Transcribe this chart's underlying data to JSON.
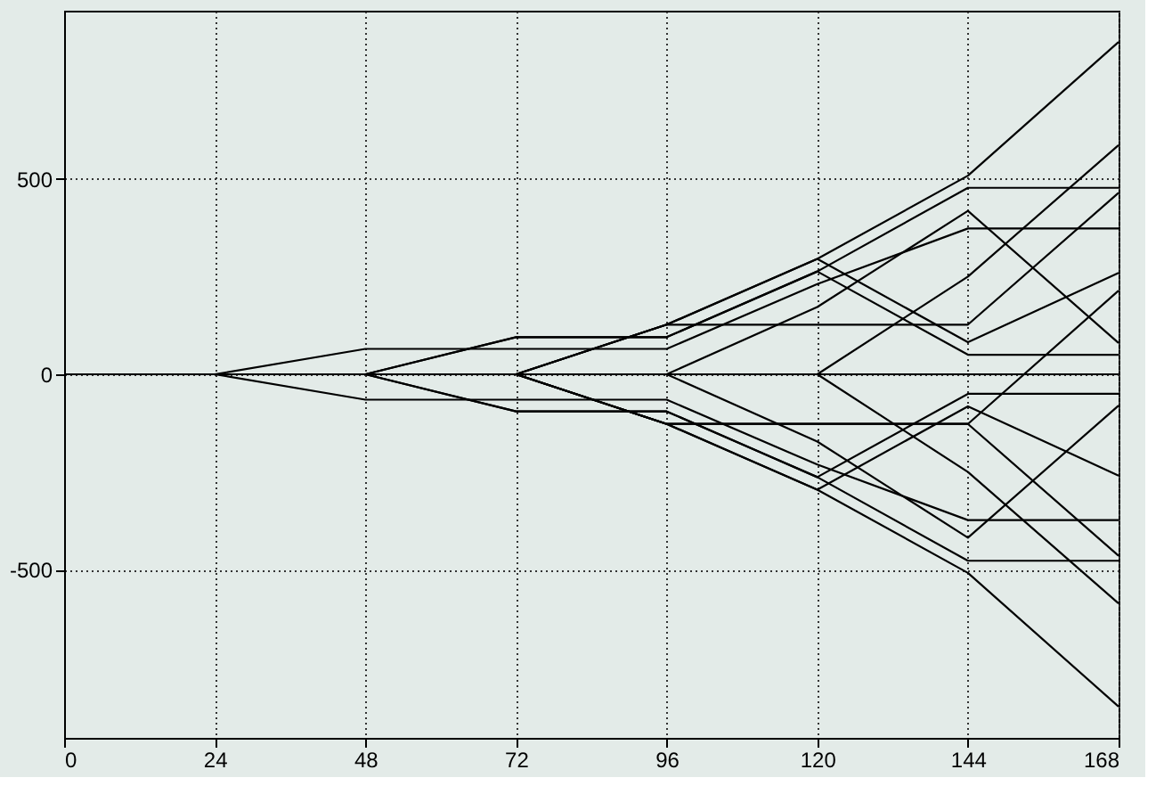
{
  "chart_data": {
    "type": "line",
    "x": [
      0,
      24,
      48,
      72,
      96,
      120,
      144,
      168
    ],
    "series": [
      {
        "color": "#000000",
        "values": [
          0,
          0,
          0,
          0,
          0,
          0,
          0,
          0
        ]
      },
      {
        "color": "#000000",
        "values": [
          0,
          0,
          65,
          65,
          65,
          231,
          373,
          373
        ]
      },
      {
        "color": "#000000",
        "values": [
          0,
          0,
          0,
          95,
          95,
          263,
          477,
          477
        ]
      },
      {
        "color": "#000000",
        "values": [
          0,
          0,
          0,
          0,
          127,
          295,
          508,
          850
        ]
      },
      {
        "color": "#000000",
        "values": [
          0,
          0,
          0,
          0,
          127,
          127,
          127,
          464
        ]
      },
      {
        "color": "#000000",
        "values": [
          0,
          0,
          0,
          0,
          0,
          172,
          418,
          80
        ]
      },
      {
        "color": "#000000",
        "values": [
          0,
          0,
          0,
          0,
          0,
          0,
          250,
          586
        ]
      },
      {
        "color": "#000000",
        "values": [
          0,
          0,
          0,
          0,
          127,
          295,
          82,
          259
        ]
      },
      {
        "color": "#000000",
        "values": [
          0,
          0,
          0,
          95,
          95,
          263,
          50,
          50
        ]
      },
      {
        "color": "#000000",
        "values": [
          0,
          0,
          -65,
          -65,
          -65,
          -231,
          -373,
          -373
        ]
      },
      {
        "color": "#000000",
        "values": [
          0,
          0,
          0,
          -95,
          -95,
          -263,
          -477,
          -477
        ]
      },
      {
        "color": "#000000",
        "values": [
          0,
          0,
          0,
          0,
          -127,
          -295,
          -508,
          -850
        ]
      },
      {
        "color": "#000000",
        "values": [
          0,
          0,
          0,
          0,
          -127,
          -127,
          -127,
          -464
        ]
      },
      {
        "color": "#000000",
        "values": [
          0,
          0,
          0,
          0,
          0,
          -172,
          -418,
          -80
        ]
      },
      {
        "color": "#000000",
        "values": [
          0,
          0,
          0,
          0,
          0,
          0,
          -250,
          -586
        ]
      },
      {
        "color": "#000000",
        "values": [
          0,
          0,
          0,
          0,
          -127,
          -295,
          -82,
          -259
        ]
      },
      {
        "color": "#000000",
        "values": [
          0,
          0,
          0,
          -95,
          -95,
          -263,
          -50,
          -50
        ]
      },
      {
        "color": "#000000",
        "values": [
          0,
          0,
          0,
          0,
          -127,
          -127,
          -127,
          214
        ]
      }
    ],
    "xlim": [
      0,
      168
    ],
    "xticks": [
      0,
      24,
      48,
      72,
      96,
      120,
      144,
      168
    ],
    "ylim": [
      -930,
      930
    ],
    "yticks": [
      -500,
      0,
      500
    ],
    "grid": true,
    "legend": false,
    "line_style": "solid",
    "marker": "none"
  }
}
